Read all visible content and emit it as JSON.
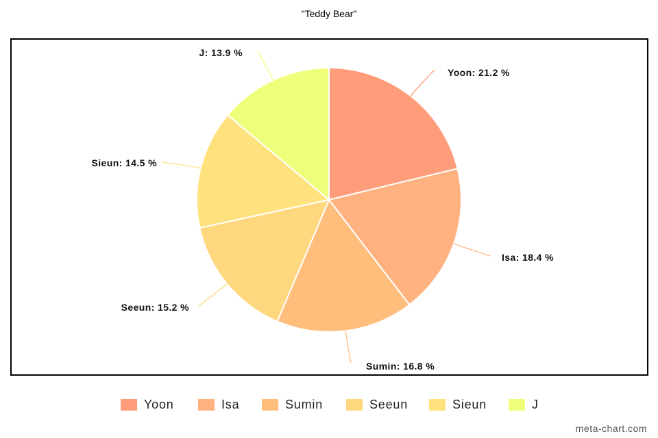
{
  "chart_data": {
    "type": "pie",
    "title": "\"Teddy Bear\"",
    "slices": [
      {
        "label": "Yoon",
        "value": 21.2,
        "color": "#FF9C7A"
      },
      {
        "label": "Isa",
        "value": 18.4,
        "color": "#FFB27F"
      },
      {
        "label": "Sumin",
        "value": 16.8,
        "color": "#FFBE7C"
      },
      {
        "label": "Seeun",
        "value": 15.2,
        "color": "#FFD77E"
      },
      {
        "label": "Sieun",
        "value": 14.5,
        "color": "#FFE27E"
      },
      {
        "label": "J",
        "value": 13.9,
        "color": "#EFFF7C"
      }
    ],
    "label_format": "{label}: {value} %",
    "legend_position": "bottom"
  },
  "watermark": "meta-chart.com"
}
